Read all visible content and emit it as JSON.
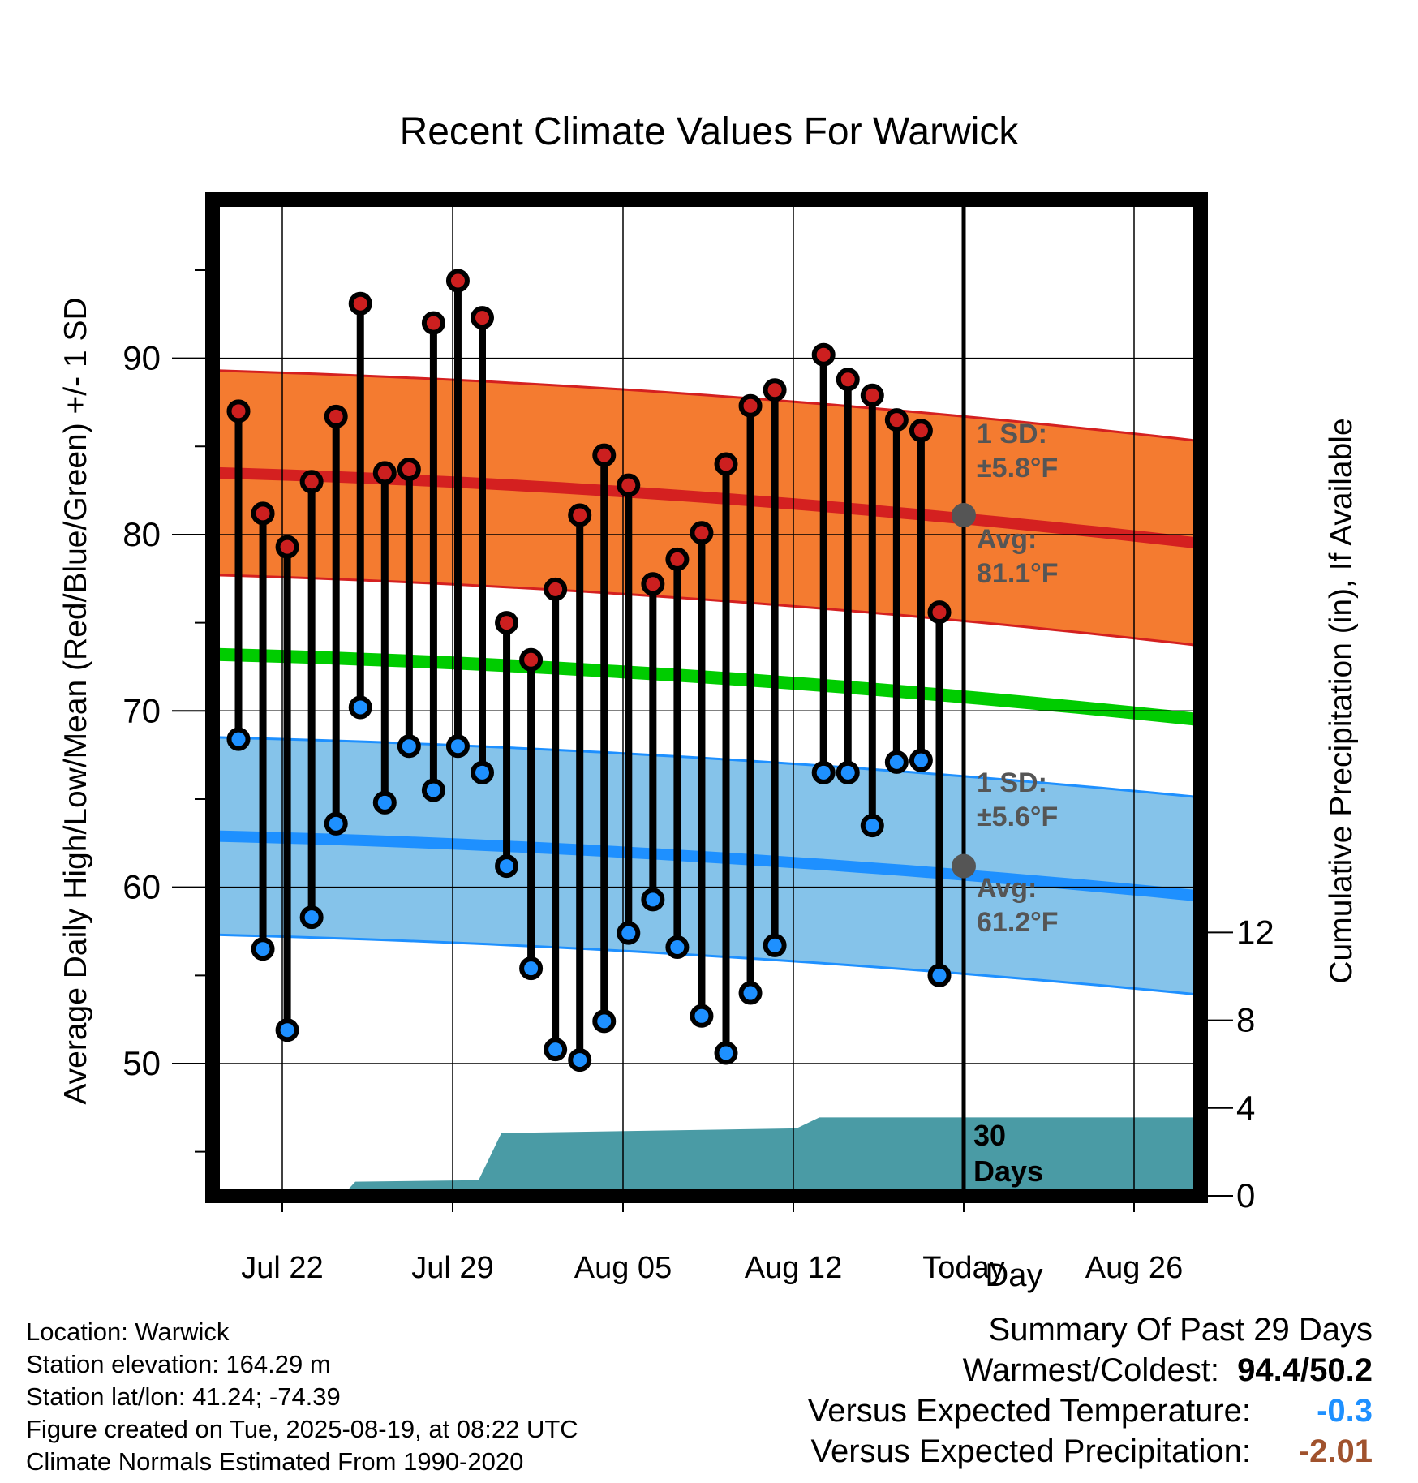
{
  "title": "Recent Climate Values For Warwick",
  "y_left_label": "Average Daily High/Low/Mean (Red/Blue/Green) +/- 1 SD",
  "y_right_label": "Cumulative Precipitation (in), If Available",
  "x_label": "Day",
  "x_ticks": [
    "Jul 22",
    "Jul 29",
    "Aug 05",
    "Aug 12",
    "Today",
    "Aug 26"
  ],
  "y_left_ticks": [
    "50",
    "60",
    "70",
    "80",
    "90"
  ],
  "y_right_ticks": [
    "0",
    "4",
    "8",
    "12"
  ],
  "annotations": {
    "high_sd_line1": "1 SD:",
    "high_sd_line2": "±5.8°F",
    "high_avg_line1": "Avg:",
    "high_avg_line2": "81.1°F",
    "low_sd_line1": "1 SD:",
    "low_sd_line2": "±5.6°F",
    "low_avg_line1": "Avg:",
    "low_avg_line2": "61.2°F",
    "days_line1": "30",
    "days_line2": "Days"
  },
  "info": {
    "location": "Location: Warwick",
    "elevation": "Station elevation: 164.29 m",
    "latlon": "Station lat/lon: 41.24; -74.39",
    "created": "Figure created on Tue, 2025-08-19, at 08:22 UTC",
    "normals": "Climate Normals Estimated From 1990-2020"
  },
  "summary": {
    "heading": "Summary Of Past 29 Days",
    "warmest_label": "Warmest/Coldest:",
    "warmest_value": "94.4/50.2",
    "temp_label": "Versus Expected Temperature:",
    "temp_value": "-0.3",
    "precip_label": "Versus Expected Precipitation:",
    "precip_value": "-2.01"
  },
  "colors": {
    "high_band": "#f47b30",
    "high_line": "#d42020",
    "low_band": "#85c3ea",
    "low_line": "#1e90ff",
    "mean_line": "#00cc00",
    "precip": "#4a9ba5",
    "high_point": "#cc1f1f",
    "low_point": "#1e90ff",
    "temp_value": "#1e90ff",
    "precip_value": "#a0522d"
  },
  "chart_data": {
    "type": "line",
    "xlim_days": [
      "Jul 19",
      "Aug 29"
    ],
    "ylim_left": [
      42.5,
      99
    ],
    "ylim_right": [
      0,
      30
    ],
    "today": "Aug 19",
    "daily": {
      "dates": [
        "Jul 21",
        "Jul 22",
        "Jul 23",
        "Jul 24",
        "Jul 25",
        "Jul 26",
        "Jul 27",
        "Jul 28",
        "Jul 29",
        "Jul 30",
        "Jul 31",
        "Aug 01",
        "Aug 02",
        "Aug 03",
        "Aug 04",
        "Aug 05",
        "Aug 06",
        "Aug 07",
        "Aug 08",
        "Aug 09",
        "Aug 10",
        "Aug 11",
        "Aug 12",
        "Aug 13",
        "Aug 14",
        "Aug 15",
        "Aug 16",
        "Aug 17",
        "Aug 18"
      ],
      "highs": [
        87.0,
        81.2,
        79.3,
        83.0,
        86.7,
        93.1,
        83.5,
        83.7,
        92.0,
        94.4,
        92.3,
        75.0,
        72.9,
        76.9,
        81.1,
        84.5,
        82.8,
        77.2,
        78.6,
        80.1,
        84.0,
        87.3,
        88.2,
        null,
        90.2,
        88.8,
        87.9,
        86.5,
        85.9
      ],
      "lows": [
        68.4,
        56.5,
        51.9,
        58.3,
        63.6,
        70.2,
        64.8,
        68.0,
        65.5,
        68.0,
        66.5,
        61.2,
        55.4,
        50.8,
        50.2,
        52.4,
        57.4,
        59.3,
        56.6,
        52.7,
        50.6,
        54.0,
        56.7,
        null,
        66.5,
        66.5,
        63.5,
        67.1,
        67.2
      ],
      "extra_day": {
        "date": "Aug 18 late",
        "high": 75.6,
        "low": 55.0
      }
    },
    "normals": {
      "dates": [
        "Jul 20",
        "Aug 29"
      ],
      "high_avg": [
        83.5,
        79.5
      ],
      "high_sd": 5.8,
      "low_avg": [
        62.9,
        59.5
      ],
      "low_sd": 5.6,
      "mean": [
        73.2,
        69.5
      ]
    },
    "precip_cumulative": {
      "dates": [
        "Jul 20",
        "Jul 24",
        "Jul 25",
        "Jul 30",
        "Jul 31",
        "Aug 11",
        "Aug 12",
        "Aug 29"
      ],
      "values": [
        0,
        0,
        0.45,
        0.5,
        2.0,
        2.15,
        2.5,
        2.5
      ]
    }
  }
}
